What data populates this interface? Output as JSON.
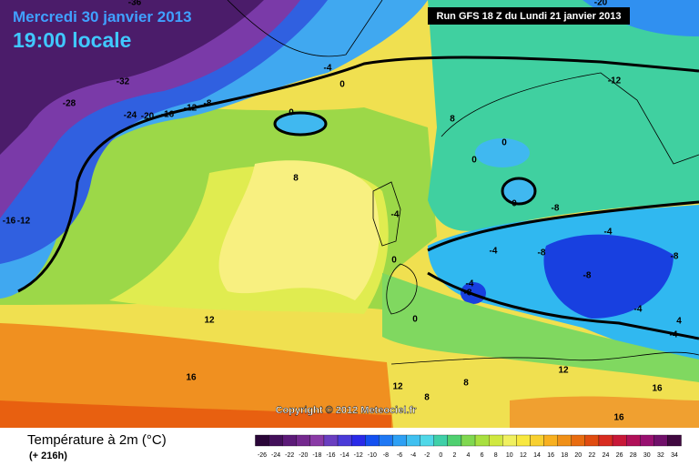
{
  "header": {
    "date": "Mercredi 30 janvier 2013",
    "time": "19:00 locale",
    "run": "Run GFS 18 Z du Lundi 21 janvier 2013"
  },
  "copyright": "Copyright © 2012 Meteociel.fr",
  "contour_labels": [
    -36,
    -32,
    -28,
    -24,
    -20,
    -16,
    -12,
    -8,
    -4,
    0,
    0,
    8,
    0,
    0,
    0,
    8,
    -16,
    -12,
    -4,
    0,
    -4,
    -8,
    -8,
    -4,
    -8,
    -4,
    4,
    -4,
    -4,
    -8,
    0,
    12,
    16,
    12,
    12,
    8,
    8,
    16,
    16,
    -20,
    -12,
    -8
  ],
  "legend": {
    "title": "Température à 2m (°C)",
    "subtitle": "(+ 216h)",
    "ticks": [
      -26,
      -24,
      -22,
      -20,
      -18,
      -16,
      -14,
      -12,
      -10,
      -8,
      -6,
      -4,
      -2,
      0,
      2,
      4,
      6,
      8,
      10,
      12,
      14,
      16,
      18,
      20,
      22,
      24,
      26,
      28,
      30,
      32,
      34
    ],
    "colors": [
      "#2a0638",
      "#43105a",
      "#5c1a78",
      "#74288e",
      "#8a3aa6",
      "#6a3ec0",
      "#4a3ad8",
      "#2a2ae8",
      "#1450f0",
      "#1f78f4",
      "#2ea0f4",
      "#40c0f0",
      "#50d8e8",
      "#40d0a8",
      "#50d070",
      "#80d850",
      "#a8e040",
      "#d0e840",
      "#f0f060",
      "#f8e840",
      "#f8d030",
      "#f8b020",
      "#f09018",
      "#e86c10",
      "#e04c10",
      "#d82c20",
      "#c81838",
      "#b01058",
      "#981070",
      "#70106a",
      "#400840"
    ]
  }
}
